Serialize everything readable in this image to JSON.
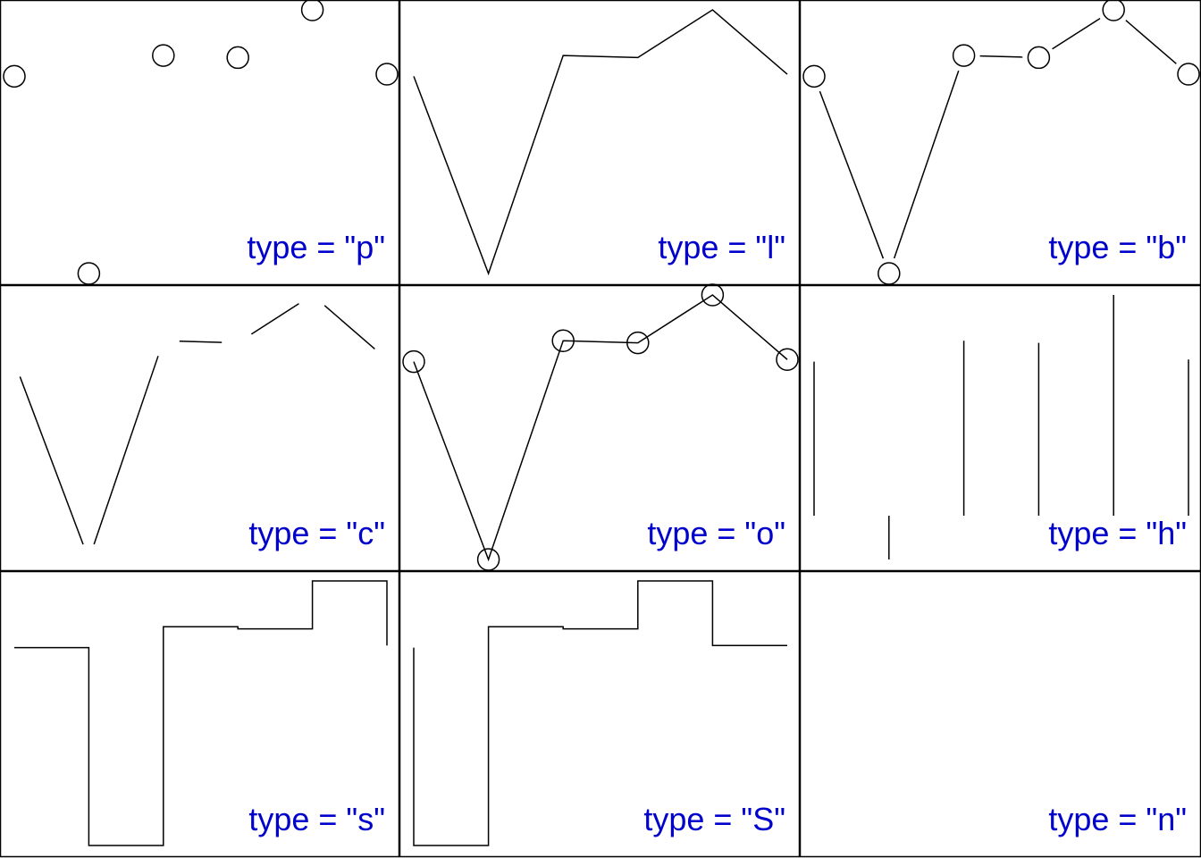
{
  "label_color": "#0000cc",
  "line_color": "#000000",
  "chart_data": {
    "type": "line",
    "x": [
      1,
      2,
      3,
      4,
      5,
      6
    ],
    "values": [
      0.74,
      -0.21,
      0.84,
      0.83,
      1.06,
      0.75
    ],
    "xlim": [
      1,
      6
    ],
    "ylim": [
      -0.21,
      1.06
    ],
    "grid": false,
    "panels": [
      {
        "plot_type": "p",
        "label": "type = \"p\""
      },
      {
        "plot_type": "l",
        "label": "type = \"l\""
      },
      {
        "plot_type": "b",
        "label": "type = \"b\""
      },
      {
        "plot_type": "c",
        "label": "type = \"c\""
      },
      {
        "plot_type": "o",
        "label": "type = \"o\""
      },
      {
        "plot_type": "h",
        "label": "type = \"h\""
      },
      {
        "plot_type": "s",
        "label": "type = \"s\""
      },
      {
        "plot_type": "S",
        "label": "type = \"S\""
      },
      {
        "plot_type": "n",
        "label": "type = \"n\""
      }
    ]
  }
}
